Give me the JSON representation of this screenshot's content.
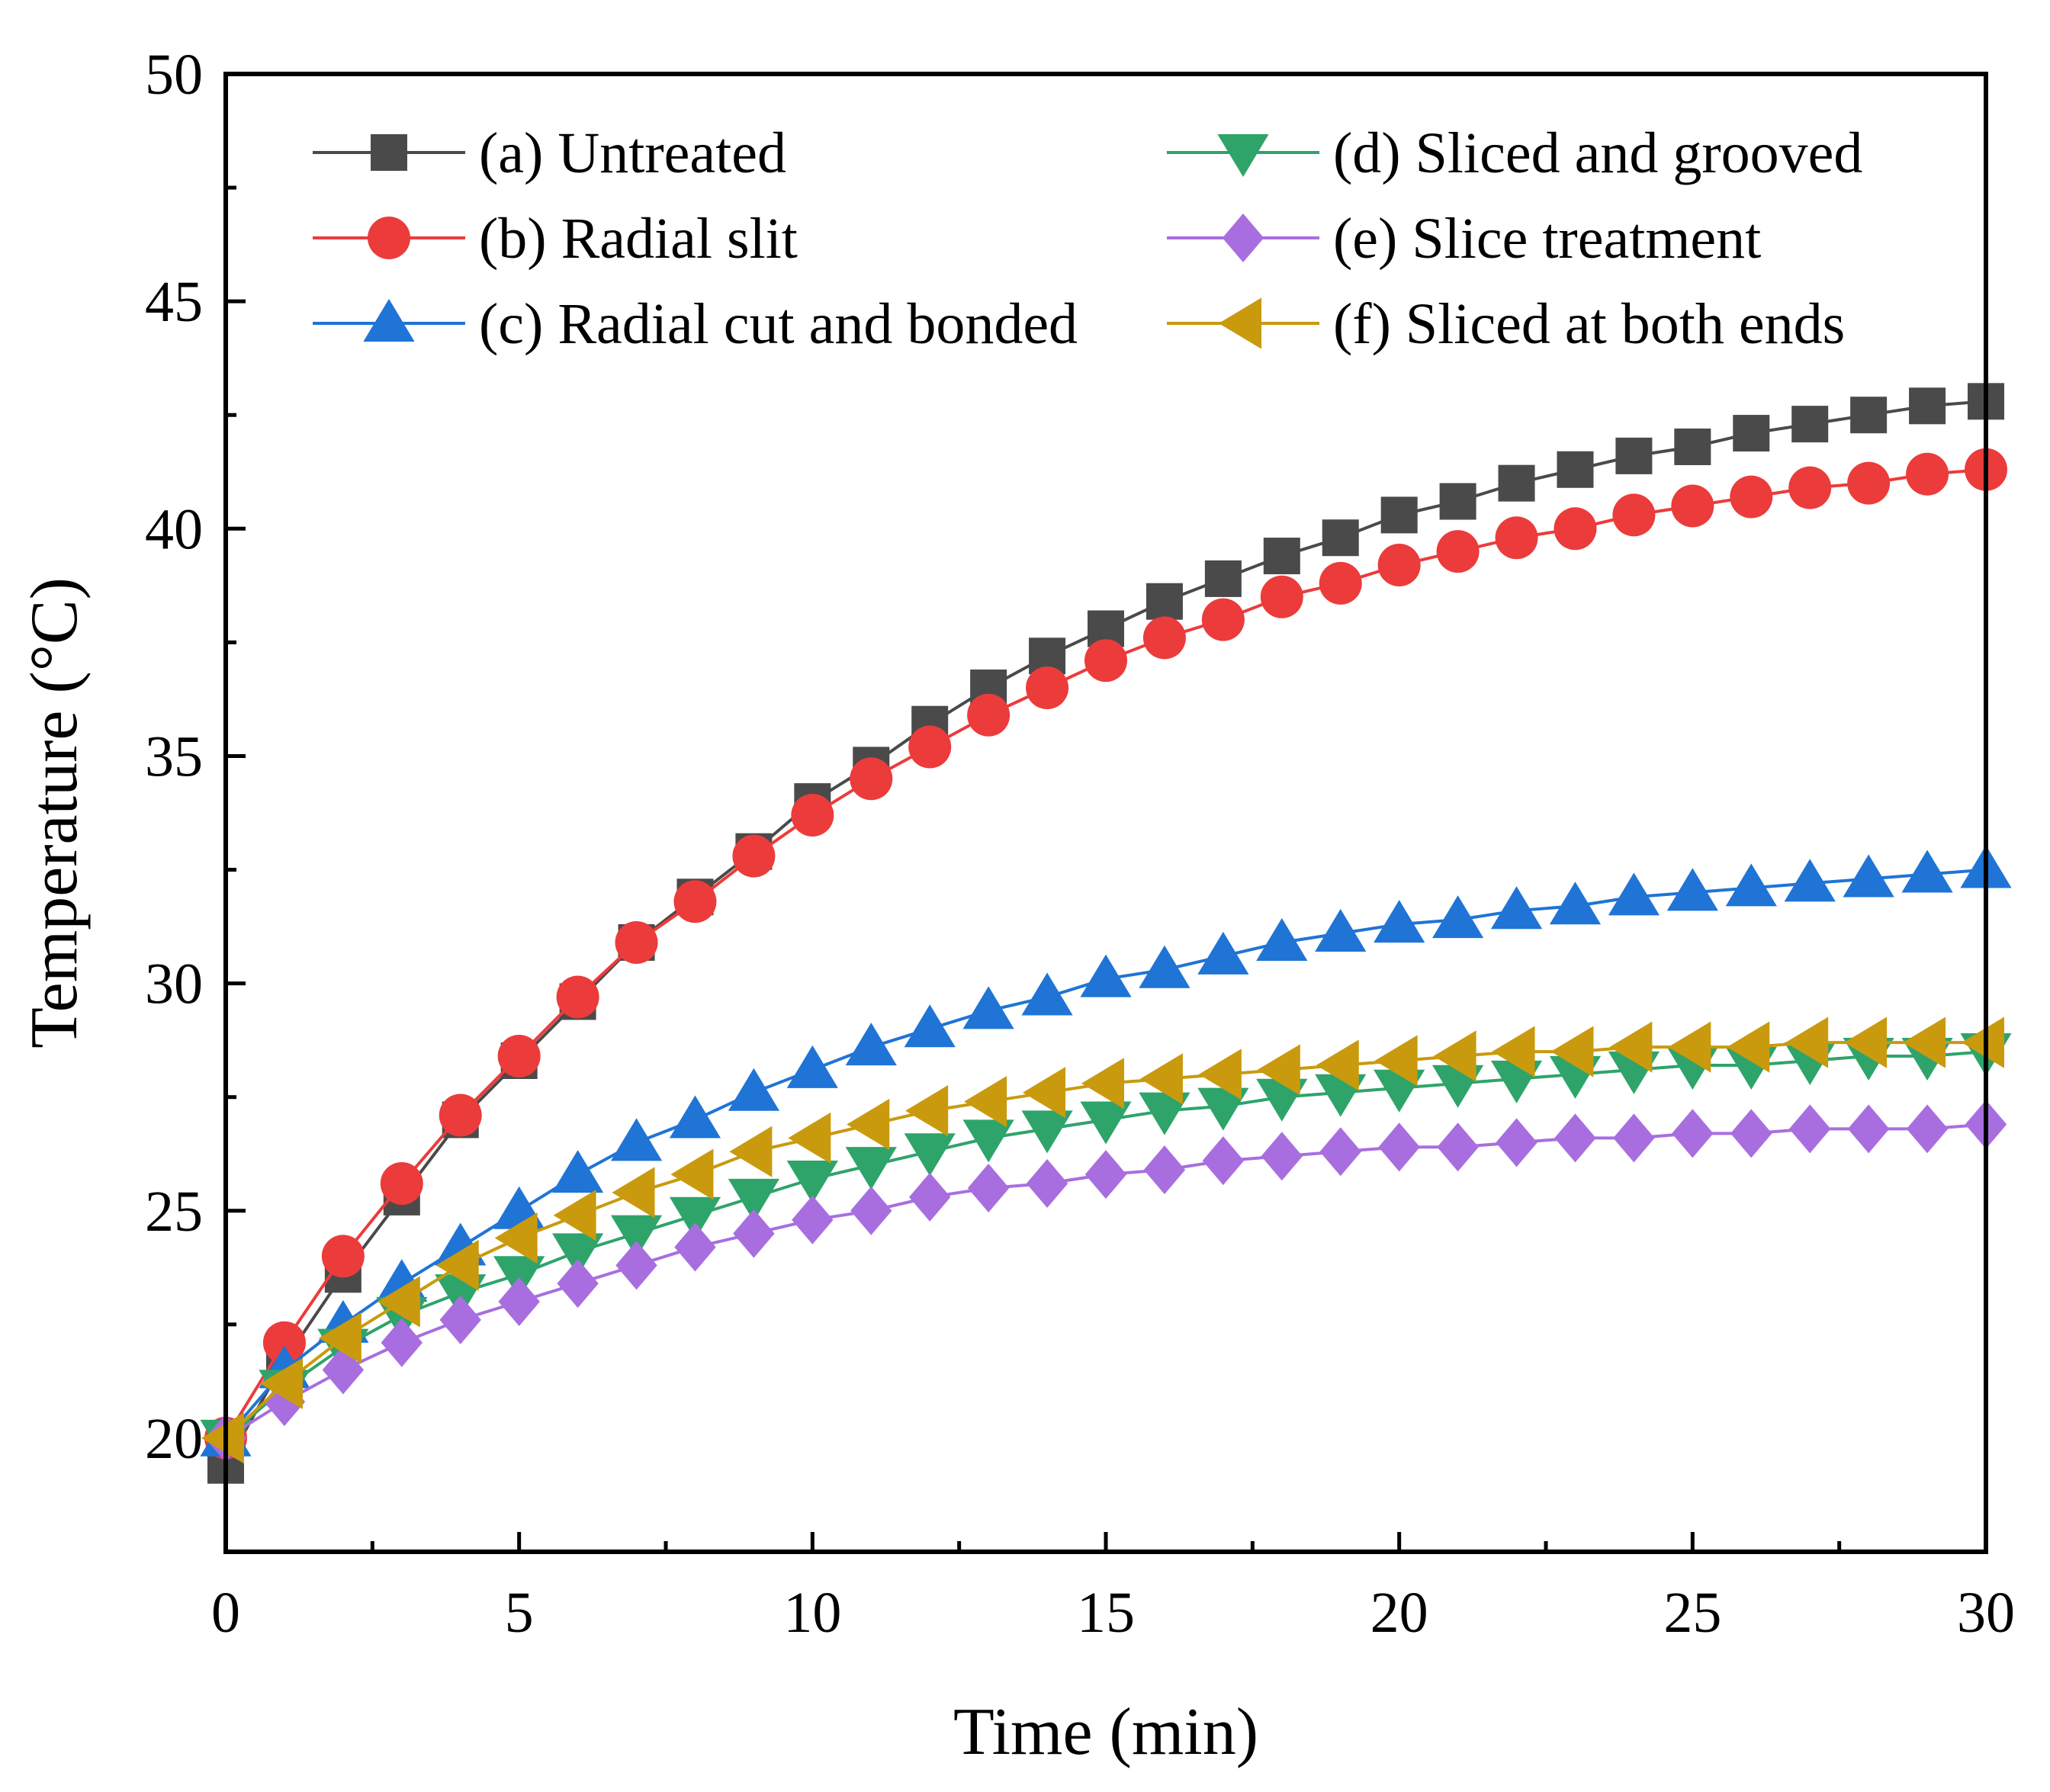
{
  "chart_data": {
    "type": "line",
    "title": "",
    "xlabel": "Time (min)",
    "ylabel": "Temperature (°C)",
    "xlim": [
      0,
      30
    ],
    "ylim": [
      17.5,
      50
    ],
    "xticks": [
      0,
      5,
      10,
      15,
      20,
      25,
      30
    ],
    "xtick_labels": [
      "0",
      "5",
      "10",
      "15",
      "20",
      "25",
      "30"
    ],
    "yticks": [
      20,
      25,
      30,
      35,
      40,
      45,
      50
    ],
    "ytick_labels": [
      "20",
      "25",
      "30",
      "35",
      "40",
      "45",
      "50"
    ],
    "grid": false,
    "legend_position": "top",
    "x": [
      0,
      1,
      2,
      3,
      4,
      5,
      6,
      7,
      8,
      9,
      10,
      11,
      12,
      13,
      14,
      15,
      16,
      17,
      18,
      19,
      20,
      21,
      22,
      23,
      24,
      25,
      26,
      27,
      28,
      29,
      30
    ],
    "series": [
      {
        "name": "(a) Untreated",
        "marker": "square",
        "color": "#4a4a4a",
        "values": [
          19.4,
          21.7,
          23.6,
          25.3,
          27.0,
          28.3,
          29.6,
          30.9,
          31.9,
          32.9,
          34.0,
          34.8,
          35.7,
          36.5,
          37.2,
          37.8,
          38.4,
          38.9,
          39.4,
          39.8,
          40.3,
          40.6,
          41.0,
          41.3,
          41.6,
          41.8,
          42.1,
          42.3,
          42.5,
          42.7,
          42.8
        ]
      },
      {
        "name": "(b) Radial slit",
        "marker": "circle",
        "color": "#ec3b3b",
        "values": [
          20.0,
          22.1,
          24.0,
          25.6,
          27.1,
          28.4,
          29.7,
          30.9,
          31.8,
          32.8,
          33.7,
          34.5,
          35.2,
          35.9,
          36.5,
          37.1,
          37.6,
          38.0,
          38.5,
          38.8,
          39.2,
          39.5,
          39.8,
          40.0,
          40.3,
          40.5,
          40.7,
          40.9,
          41.0,
          41.2,
          41.3
        ]
      },
      {
        "name": "(c) Radial cut and bonded",
        "marker": "triangle-up",
        "color": "#1f74d6",
        "values": [
          20.0,
          21.5,
          22.5,
          23.4,
          24.2,
          25.0,
          25.8,
          26.5,
          27.0,
          27.6,
          28.1,
          28.6,
          29.0,
          29.4,
          29.7,
          30.1,
          30.3,
          30.6,
          30.9,
          31.1,
          31.3,
          31.4,
          31.6,
          31.7,
          31.9,
          32.0,
          32.1,
          32.2,
          32.3,
          32.4,
          32.5
        ]
      },
      {
        "name": "(d) Sliced and grooved",
        "marker": "triangle-down",
        "color": "#2ea46a",
        "values": [
          20.0,
          21.1,
          22.0,
          22.7,
          23.2,
          23.6,
          24.1,
          24.5,
          24.9,
          25.3,
          25.7,
          26.0,
          26.3,
          26.6,
          26.8,
          27.0,
          27.2,
          27.3,
          27.5,
          27.6,
          27.7,
          27.8,
          27.9,
          28.0,
          28.1,
          28.2,
          28.2,
          28.3,
          28.4,
          28.4,
          28.5
        ]
      },
      {
        "name": "(e) Slice treatment",
        "marker": "diamond",
        "color": "#a86ee0",
        "values": [
          20.0,
          20.8,
          21.5,
          22.1,
          22.6,
          23.0,
          23.4,
          23.8,
          24.2,
          24.5,
          24.8,
          25.0,
          25.3,
          25.5,
          25.6,
          25.8,
          25.9,
          26.1,
          26.2,
          26.3,
          26.4,
          26.4,
          26.5,
          26.6,
          26.6,
          26.7,
          26.7,
          26.8,
          26.8,
          26.8,
          26.9
        ]
      },
      {
        "name": "(f) Sliced at both ends",
        "marker": "triangle-left",
        "color": "#c99a0e",
        "values": [
          20.0,
          21.2,
          22.2,
          23.0,
          23.8,
          24.4,
          24.9,
          25.4,
          25.8,
          26.3,
          26.6,
          26.9,
          27.2,
          27.4,
          27.6,
          27.8,
          27.9,
          28.0,
          28.1,
          28.2,
          28.3,
          28.4,
          28.5,
          28.5,
          28.6,
          28.6,
          28.6,
          28.7,
          28.7,
          28.7,
          28.7
        ]
      }
    ]
  }
}
